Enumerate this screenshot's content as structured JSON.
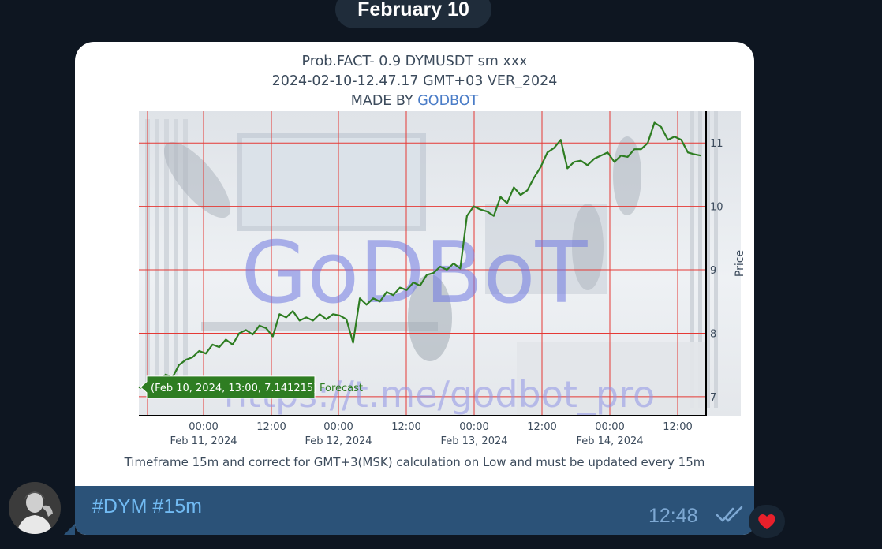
{
  "date_separator": "February 10",
  "chart_post": {
    "title_line1": "Prob.FACT- 0.9 DYMUSDT sm xxx",
    "title_line2": "2024-02-10-12.47.17 GMT+03 VER_2024",
    "made_by_prefix": "MADE BY",
    "made_by_name": "GODBOT",
    "watermark_text": "GoDBoT",
    "watermark_url": "https://t.me/godbot_pro",
    "footer_note": "Timeframe 15m and correct for GMT+3(MSK) calculation on Low and must be updated every 15m"
  },
  "chart_data": {
    "type": "line",
    "ylabel": "Price",
    "ylim": [
      6.7,
      11.5
    ],
    "yticks": [
      7,
      8,
      9,
      10,
      11
    ],
    "x_range_hours": [
      0,
      84
    ],
    "x_ticks": [
      {
        "h": 12,
        "label1": "00:00",
        "label2": "Feb 11, 2024"
      },
      {
        "h": 24,
        "label1": "12:00",
        "label2": ""
      },
      {
        "h": 36,
        "label1": "00:00",
        "label2": "Feb 12, 2024"
      },
      {
        "h": 48,
        "label1": "12:00",
        "label2": ""
      },
      {
        "h": 60,
        "label1": "00:00",
        "label2": "Feb 13, 2024"
      },
      {
        "h": 72,
        "label1": "12:00",
        "label2": ""
      },
      {
        "h": 84,
        "label1": "00:00",
        "label2": "Feb 14, 2024"
      },
      {
        "h": 96,
        "label1": "12:00",
        "label2": ""
      }
    ],
    "series": [
      {
        "name": "Forecast",
        "color": "#2e7d22",
        "points": [
          [
            0,
            7.15
          ],
          [
            1,
            7.12
          ],
          [
            2,
            7.28
          ],
          [
            3,
            7.22
          ],
          [
            4,
            7.35
          ],
          [
            5,
            7.3
          ],
          [
            6,
            7.5
          ],
          [
            7,
            7.58
          ],
          [
            8,
            7.62
          ],
          [
            9,
            7.72
          ],
          [
            10,
            7.68
          ],
          [
            11,
            7.82
          ],
          [
            12,
            7.78
          ],
          [
            13,
            7.9
          ],
          [
            14,
            7.82
          ],
          [
            15,
            8.0
          ],
          [
            16,
            8.05
          ],
          [
            17,
            7.98
          ],
          [
            18,
            8.12
          ],
          [
            19,
            8.08
          ],
          [
            20,
            7.95
          ],
          [
            21,
            8.3
          ],
          [
            22,
            8.25
          ],
          [
            23,
            8.35
          ],
          [
            24,
            8.2
          ],
          [
            25,
            8.25
          ],
          [
            26,
            8.2
          ],
          [
            27,
            8.3
          ],
          [
            28,
            8.22
          ],
          [
            29,
            8.3
          ],
          [
            30,
            8.28
          ],
          [
            31,
            8.22
          ],
          [
            32,
            7.85
          ],
          [
            33,
            8.55
          ],
          [
            34,
            8.45
          ],
          [
            35,
            8.55
          ],
          [
            36,
            8.5
          ],
          [
            37,
            8.65
          ],
          [
            38,
            8.6
          ],
          [
            39,
            8.72
          ],
          [
            40,
            8.68
          ],
          [
            41,
            8.8
          ],
          [
            42,
            8.75
          ],
          [
            43,
            8.92
          ],
          [
            44,
            8.95
          ],
          [
            45,
            9.05
          ],
          [
            46,
            9.0
          ],
          [
            47,
            9.1
          ],
          [
            48,
            9.02
          ],
          [
            49,
            9.85
          ],
          [
            50,
            10.0
          ],
          [
            51,
            9.95
          ],
          [
            52,
            9.92
          ],
          [
            53,
            9.85
          ],
          [
            54,
            10.15
          ],
          [
            55,
            10.05
          ],
          [
            56,
            10.3
          ],
          [
            57,
            10.18
          ],
          [
            58,
            10.25
          ],
          [
            59,
            10.45
          ],
          [
            60,
            10.62
          ],
          [
            61,
            10.85
          ],
          [
            62,
            10.92
          ],
          [
            63,
            11.05
          ],
          [
            64,
            10.6
          ],
          [
            65,
            10.7
          ],
          [
            66,
            10.72
          ],
          [
            67,
            10.65
          ],
          [
            68,
            10.75
          ],
          [
            69,
            10.8
          ],
          [
            70,
            10.85
          ],
          [
            71,
            10.7
          ],
          [
            72,
            10.8
          ],
          [
            73,
            10.78
          ],
          [
            74,
            10.9
          ],
          [
            75,
            10.9
          ],
          [
            76,
            11.0
          ],
          [
            77,
            11.32
          ],
          [
            78,
            11.25
          ],
          [
            79,
            11.05
          ],
          [
            80,
            11.1
          ],
          [
            81,
            11.05
          ],
          [
            82,
            10.85
          ],
          [
            83,
            10.82
          ],
          [
            84,
            10.8
          ]
        ]
      }
    ],
    "hover_label": "(Feb 10, 2024, 13:00, 7.141215)",
    "hover_series": "Forecast",
    "grid_color": "#e53935"
  },
  "caption": {
    "hashtag1": "#DYM",
    "hashtag2": "#15m",
    "time": "12:48"
  },
  "reaction": {
    "icon": "heart-icon",
    "color": "#e8202b"
  },
  "avatar": {
    "icon": "user-avatar"
  }
}
